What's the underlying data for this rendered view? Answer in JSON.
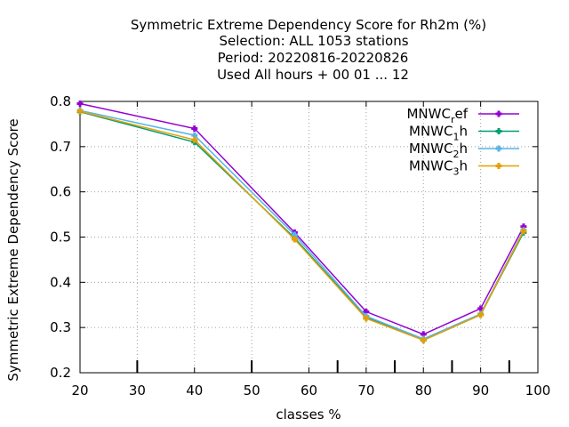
{
  "chart_data": {
    "type": "line",
    "title_lines": [
      "Symmetric Extreme Dependency Score  for Rh2m (%)",
      "Selection: ALL   1053 stations",
      "Period: 20220816-20220826",
      "Used  All hours + 00 01 ... 12"
    ],
    "xlabel": "classes %",
    "ylabel": "Symmetric Extreme Dependency Score",
    "xlim": [
      20,
      100
    ],
    "ylim": [
      0.2,
      0.8
    ],
    "xticks": [
      "20",
      "30",
      "40",
      "50",
      "60",
      "70",
      "80",
      "90",
      "100"
    ],
    "yticks": [
      "0.2",
      "0.3",
      "0.4",
      "0.5",
      "0.6",
      "0.7",
      "0.8"
    ],
    "class_marks": [
      30,
      50,
      65,
      75,
      85,
      95
    ],
    "grid": true,
    "legend_position": "top-right",
    "series": [
      {
        "name_main": "MNWC",
        "name_sub": "r",
        "name_rest": "ef",
        "color": "#9400d3",
        "x": [
          20,
          40,
          57.5,
          70,
          80,
          90,
          97.5
        ],
        "y": [
          0.795,
          0.74,
          0.51,
          0.335,
          0.285,
          0.342,
          0.523
        ]
      },
      {
        "name_main": "MNWC",
        "name_sub": "1",
        "name_rest": "h",
        "color": "#009e73",
        "x": [
          20,
          40,
          57.5,
          70,
          80,
          90,
          97.5
        ],
        "y": [
          0.777,
          0.71,
          0.498,
          0.322,
          0.272,
          0.328,
          0.51
        ]
      },
      {
        "name_main": "MNWC",
        "name_sub": "2",
        "name_rest": "h",
        "color": "#56b4e9",
        "x": [
          20,
          40,
          57.5,
          70,
          80,
          90,
          97.5
        ],
        "y": [
          0.78,
          0.725,
          0.505,
          0.325,
          0.275,
          0.33,
          0.515
        ]
      },
      {
        "name_main": "MNWC",
        "name_sub": "3",
        "name_rest": "h",
        "color": "#e69f00",
        "x": [
          20,
          40,
          57.5,
          70,
          80,
          90,
          97.5
        ],
        "y": [
          0.778,
          0.715,
          0.495,
          0.32,
          0.272,
          0.328,
          0.513
        ]
      }
    ]
  }
}
